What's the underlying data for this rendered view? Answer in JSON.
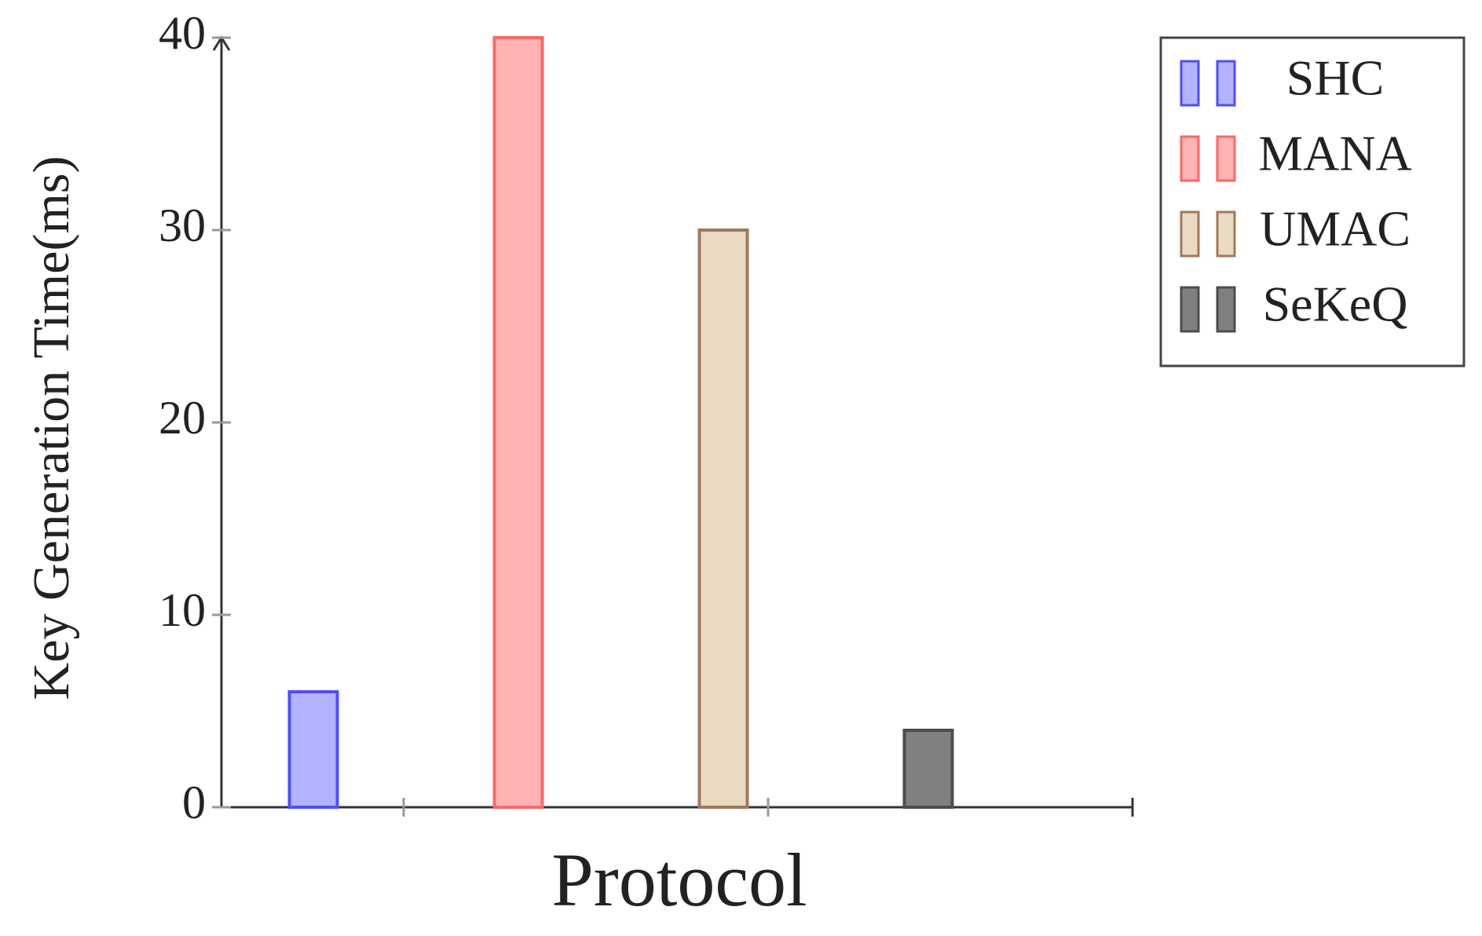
{
  "chart_data": {
    "type": "bar",
    "x_label": "Protocol",
    "y_label": "Key Generation Time(ms)",
    "categories": [
      null
    ],
    "series": [
      {
        "name": "SHC",
        "color": "#b3b3ff",
        "edgecolor": "#4d4dff",
        "values": [
          6
        ]
      },
      {
        "name": "MANA",
        "color": "#ffb3b3",
        "edgecolor": "#ff6666",
        "values": [
          40
        ]
      },
      {
        "name": "UMAC",
        "color": "#ead9c3",
        "edgecolor": "#a0785a",
        "values": [
          30
        ]
      },
      {
        "name": "SeKeQ",
        "color": "#808080",
        "edgecolor": "#4d4d4d",
        "values": [
          4
        ]
      }
    ],
    "ylim": [
      0,
      40
    ],
    "yticks": [
      0,
      10,
      20,
      30,
      40
    ],
    "grid": false,
    "legend": "upper right"
  }
}
